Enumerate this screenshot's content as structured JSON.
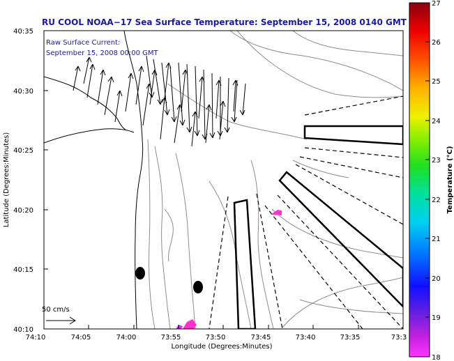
{
  "title": "RU COOL  NOAA−17  Sea Surface Temperature:  September 15, 2008 0140 GMT",
  "annotation": {
    "line1": "Raw Surface Current:",
    "line2": "September 15, 2008 00:00 GMT"
  },
  "scale": {
    "label": "50 cm/s"
  },
  "axes": {
    "x_label": "Longitude (Degrees:Minutes)",
    "y_label": "Latitude (Degrees:Minutes)",
    "x_ticks": [
      "74:10",
      "74:05",
      "74:00",
      "73:55",
      "73:50",
      "73:45",
      "73:40",
      "73:35",
      "73:3"
    ],
    "y_ticks": [
      "40:35",
      "40:30",
      "40:25",
      "40:20",
      "40:15",
      "40:10"
    ]
  },
  "colorbar": {
    "label": "Temperature (°C)",
    "ticks": [
      "27",
      "26",
      "25",
      "24",
      "23",
      "22",
      "21",
      "20",
      "19",
      "18"
    ],
    "min": 18,
    "max": 27
  },
  "colors": {
    "title": "#1a1aa0",
    "land": "#ffffff",
    "contour": "#8c8c8c",
    "magenta": "#ff33cc"
  }
}
